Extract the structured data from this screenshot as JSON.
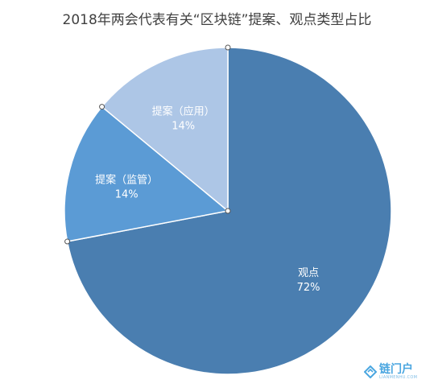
{
  "chart_data": {
    "type": "pie",
    "title": "2018年两会代表有关“区块链”提案、观点类型占比",
    "slices": [
      {
        "label": "观点",
        "value": 72,
        "value_label": "72%",
        "color": "#4a7eb0"
      },
      {
        "label": "提案（监管）",
        "value": 14,
        "value_label": "14%",
        "color": "#5b9bd5"
      },
      {
        "label": "提案（应用）",
        "value": 14,
        "value_label": "14%",
        "color": "#adc6e6"
      }
    ],
    "start": "12 o'clock",
    "direction": "clockwise"
  },
  "watermark": {
    "name": "链门户",
    "sub": "LIANMENHU.COM"
  }
}
